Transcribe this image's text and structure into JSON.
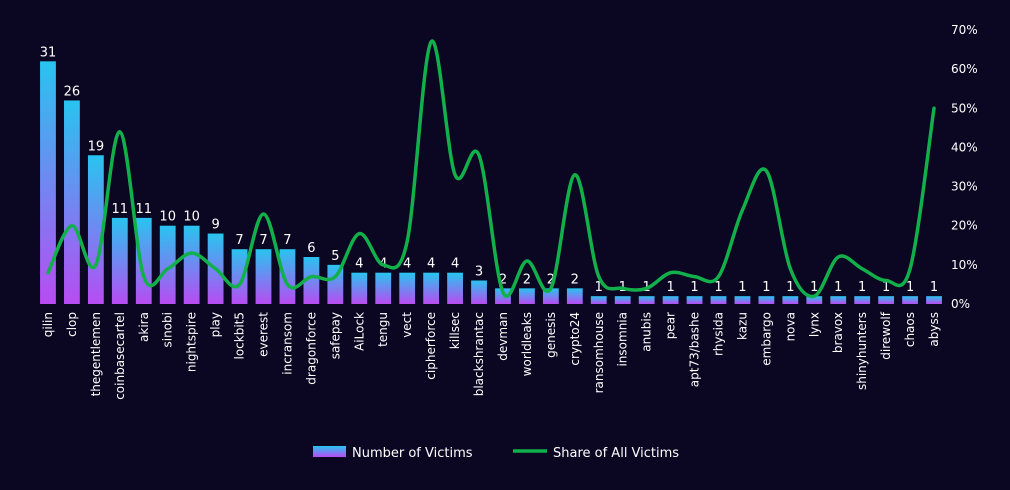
{
  "chart_data": {
    "type": "bar",
    "combo": "bar+line",
    "categories": [
      "qilin",
      "clop",
      "thegentlemen",
      "coinbasecartel",
      "akira",
      "sinobi",
      "nightspire",
      "play",
      "lockbit5",
      "everest",
      "incransom",
      "dragonforce",
      "safepay",
      "AiLock",
      "tengu",
      "vect",
      "cipherforce",
      "killsec",
      "blackshrantac",
      "devman",
      "worldleaks",
      "genesis",
      "crypto24",
      "ransomhouse",
      "insomnia",
      "anubis",
      "pear",
      "apt73/bashe",
      "rhysida",
      "kazu",
      "embargo",
      "nova",
      "lynx",
      "bravox",
      "shinyhunters",
      "direwolf",
      "chaos",
      "abyss"
    ],
    "series": [
      {
        "name": "Number of Victims",
        "type": "bar",
        "axis": "left",
        "values": [
          31,
          26,
          19,
          11,
          11,
          10,
          10,
          9,
          7,
          7,
          7,
          6,
          5,
          4,
          4,
          4,
          4,
          4,
          3,
          2,
          2,
          2,
          2,
          1,
          1,
          1,
          1,
          1,
          1,
          1,
          1,
          1,
          1,
          1,
          1,
          1,
          1,
          1
        ]
      },
      {
        "name": "Share of All Victims",
        "type": "line",
        "axis": "right",
        "smooth": true,
        "values": [
          8,
          20,
          10,
          44,
          7,
          9,
          13,
          9,
          5,
          23,
          5,
          7,
          7,
          18,
          10,
          16,
          67,
          33,
          38,
          3,
          11,
          4,
          33,
          7,
          4,
          4,
          8,
          7,
          7,
          24,
          34,
          9,
          2,
          12,
          9,
          6,
          9,
          50
        ]
      }
    ],
    "y_left": {
      "min": 0,
      "max": 35
    },
    "y_right": {
      "min": 0,
      "max": 70,
      "ticks": [
        "0%",
        "10%",
        "20%",
        "30%",
        "40%",
        "50%",
        "60%",
        "70%"
      ]
    },
    "legend": {
      "position": "bottom"
    },
    "colors": {
      "bar_top": "#28c4f0",
      "bar_bottom": "#b84cf2",
      "line": "#12b04a",
      "background": "#0b0722"
    }
  }
}
